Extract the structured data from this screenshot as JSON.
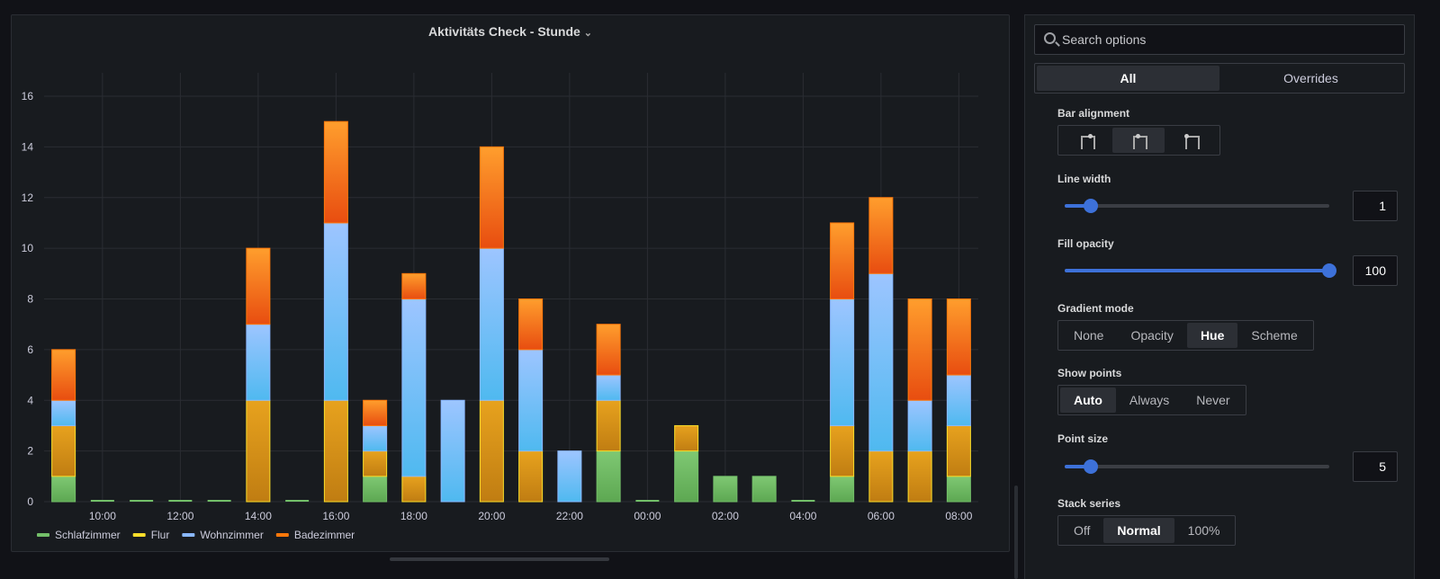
{
  "panel": {
    "title": "Aktivitäts Check - Stunde"
  },
  "options": {
    "search": {
      "placeholder": "Search options"
    },
    "tabs": [
      {
        "label": "All",
        "active": true
      },
      {
        "label": "Overrides",
        "active": false
      }
    ],
    "bar_alignment": {
      "label": "Bar alignment",
      "options": [
        "before",
        "center",
        "after"
      ],
      "selected": 1
    },
    "line_width": {
      "label": "Line width",
      "value": "1",
      "fraction": 0.1
    },
    "fill_opacity": {
      "label": "Fill opacity",
      "value": "100",
      "fraction": 1.0
    },
    "gradient_mode": {
      "label": "Gradient mode",
      "options": [
        "None",
        "Opacity",
        "Hue",
        "Scheme"
      ],
      "selected": 2
    },
    "show_points": {
      "label": "Show points",
      "options": [
        "Auto",
        "Always",
        "Never"
      ],
      "selected": 0
    },
    "point_size": {
      "label": "Point size",
      "value": "5",
      "fraction": 0.1
    },
    "stack_series": {
      "label": "Stack series",
      "options": [
        "Off",
        "Normal",
        "100%"
      ],
      "selected": 1
    }
  },
  "chart_data": {
    "type": "bar",
    "stacked": true,
    "ylim": [
      0,
      16
    ],
    "yticks": [
      "0",
      "2",
      "4",
      "6",
      "8",
      "10",
      "12",
      "14",
      "16"
    ],
    "x_tick_labels": [
      "10:00",
      "12:00",
      "14:00",
      "16:00",
      "18:00",
      "20:00",
      "22:00",
      "00:00",
      "02:00",
      "04:00",
      "06:00",
      "08:00"
    ],
    "x_tick_hour_index": [
      1,
      3,
      5,
      7,
      9,
      11,
      13,
      15,
      17,
      19,
      21,
      23
    ],
    "hours": [
      "09:00",
      "10:00",
      "11:00",
      "12:00",
      "13:00",
      "14:00",
      "15:00",
      "16:00",
      "17:00",
      "18:00",
      "19:00",
      "20:00",
      "21:00",
      "22:00",
      "23:00",
      "00:00",
      "01:00",
      "02:00",
      "03:00",
      "04:00",
      "05:00",
      "06:00",
      "07:00",
      "08:00"
    ],
    "series": [
      {
        "name": "Schlafzimmer",
        "color": "#73bf69",
        "values": [
          1,
          0,
          0,
          0,
          0,
          0,
          0,
          0,
          1,
          0,
          0,
          0,
          0,
          0,
          2,
          0,
          2,
          1,
          1,
          0,
          1,
          0,
          0,
          1
        ]
      },
      {
        "name": "Flur",
        "color": "#fade2a",
        "values": [
          2,
          0,
          0,
          0,
          0,
          4,
          0,
          4,
          1,
          1,
          0,
          4,
          2,
          0,
          2,
          0,
          1,
          0,
          0,
          0,
          2,
          2,
          2,
          2
        ]
      },
      {
        "name": "Wohnzimmer",
        "color": "#8ab8ff",
        "values": [
          1,
          0,
          0,
          0,
          0,
          3,
          0,
          7,
          1,
          7,
          4,
          6,
          4,
          2,
          1,
          0,
          0,
          0,
          0,
          0,
          5,
          7,
          2,
          2
        ]
      },
      {
        "name": "Badezimmer",
        "color": "#ff780a",
        "values": [
          2,
          0,
          0,
          0,
          0,
          3,
          0,
          4,
          1,
          1,
          0,
          4,
          2,
          0,
          2,
          0,
          0,
          0,
          0,
          0,
          3,
          3,
          4,
          3
        ]
      }
    ],
    "legend_placement": "bottom-left",
    "grid": true
  }
}
